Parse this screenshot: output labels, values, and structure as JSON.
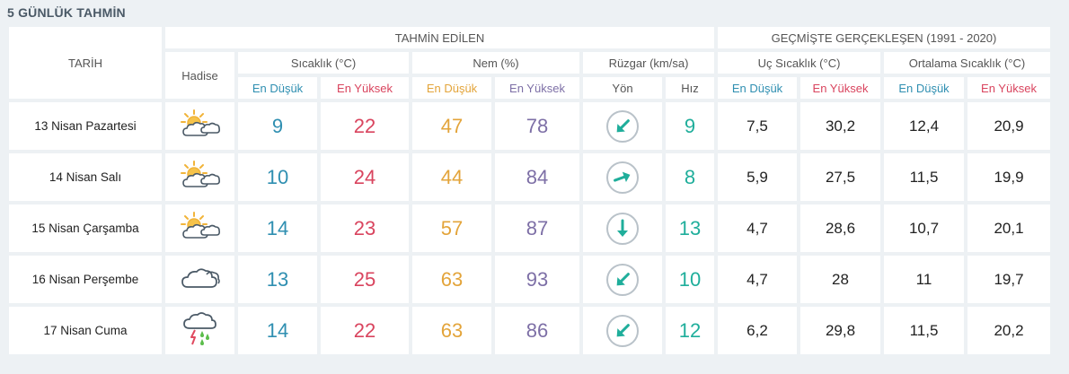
{
  "section_title": "5 GÜNLÜK TAHMİN",
  "headers": {
    "tarih": "TARİH",
    "hadise": "Hadise",
    "forecast_group": "TAHMİN EDİLEN",
    "history_group": "GEÇMİŞTE GERÇEKLEŞEN (1991 - 2020)",
    "temp": "Sıcaklık (°C)",
    "humidity": "Nem (%)",
    "wind": "Rüzgar (km/sa)",
    "extreme_temp": "Uç Sıcaklık (°C)",
    "avg_temp": "Ortalama Sıcaklık (°C)",
    "min": "En Düşük",
    "max": "En Yüksek",
    "direction": "Yön",
    "speed": "Hız"
  },
  "colors": {
    "min_temp": "#2f8fb1",
    "max_temp": "#d9445e",
    "min_humidity": "#e3a43a",
    "max_humidity": "#7d6fa6",
    "wind": "#1fae9b"
  },
  "rows": [
    {
      "date": "13 Nisan Pazartesi",
      "icon": "partly-cloudy-icon",
      "temp_min": "9",
      "temp_max": "22",
      "hum_min": "47",
      "hum_max": "78",
      "wind_dir_deg": 135,
      "wind_speed": "9",
      "ext_min": "7,5",
      "ext_max": "30,2",
      "avg_min": "12,4",
      "avg_max": "20,9"
    },
    {
      "date": "14 Nisan Salı",
      "icon": "partly-cloudy-icon",
      "temp_min": "10",
      "temp_max": "24",
      "hum_min": "44",
      "hum_max": "84",
      "wind_dir_deg": -20,
      "wind_speed": "8",
      "ext_min": "5,9",
      "ext_max": "27,5",
      "avg_min": "11,5",
      "avg_max": "19,9"
    },
    {
      "date": "15 Nisan Çarşamba",
      "icon": "partly-cloudy-icon",
      "temp_min": "14",
      "temp_max": "23",
      "hum_min": "57",
      "hum_max": "87",
      "wind_dir_deg": 90,
      "wind_speed": "13",
      "ext_min": "4,7",
      "ext_max": "28,6",
      "avg_min": "10,7",
      "avg_max": "20,1"
    },
    {
      "date": "16 Nisan Perşembe",
      "icon": "cloudy-icon",
      "temp_min": "13",
      "temp_max": "25",
      "hum_min": "63",
      "hum_max": "93",
      "wind_dir_deg": 135,
      "wind_speed": "10",
      "ext_min": "4,7",
      "ext_max": "28",
      "avg_min": "11",
      "avg_max": "19,7"
    },
    {
      "date": "17 Nisan Cuma",
      "icon": "thunderstorm-rain-icon",
      "temp_min": "14",
      "temp_max": "22",
      "hum_min": "63",
      "hum_max": "86",
      "wind_dir_deg": 135,
      "wind_speed": "12",
      "ext_min": "6,2",
      "ext_max": "29,8",
      "avg_min": "11,5",
      "avg_max": "20,2"
    }
  ]
}
